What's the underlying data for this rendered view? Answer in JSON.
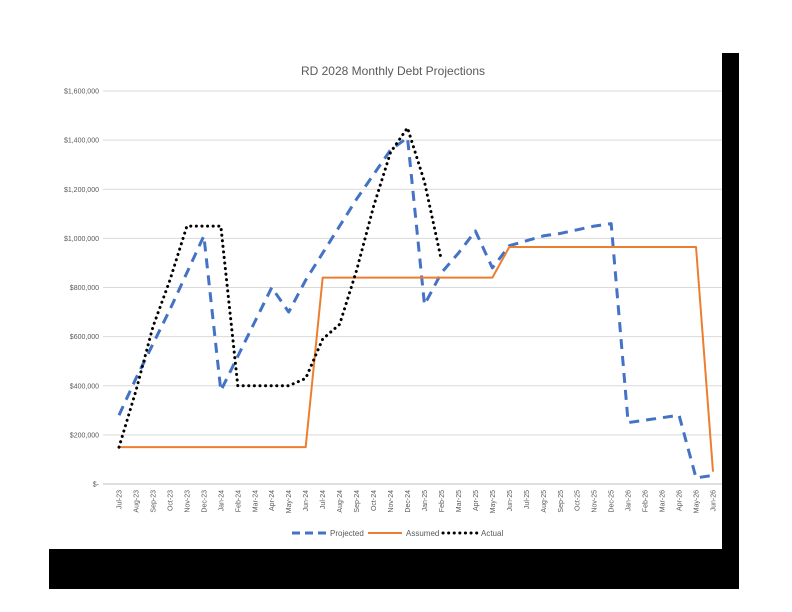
{
  "chart_data": {
    "type": "line",
    "title": "RD 2028 Monthly Debt Projections",
    "categories": [
      "Jul-23",
      "Aug-23",
      "Sep-23",
      "Oct-23",
      "Nov-23",
      "Dec-23",
      "Jan-24",
      "Feb-24",
      "Mar-24",
      "Apr-24",
      "May-24",
      "Jun-24",
      "Jul-24",
      "Aug-24",
      "Sep-24",
      "Oct-24",
      "Nov-24",
      "Dec-24",
      "Jan-25",
      "Feb-25",
      "Mar-25",
      "Apr-25",
      "May-25",
      "Jun-25",
      "Jul-25",
      "Aug-25",
      "Sep-25",
      "Oct-25",
      "Nov-25",
      "Dec-25",
      "Jan-26",
      "Feb-26",
      "Mar-26",
      "Apr-26",
      "May-26",
      "Jun-26"
    ],
    "y_ticks": [
      "$-",
      "$200,000",
      "$400,000",
      "$600,000",
      "$800,000",
      "$1,000,000",
      "$1,200,000",
      "$1,400,000",
      "$1,600,000"
    ],
    "ylim": [
      0,
      1600000
    ],
    "grid": true,
    "legend_position": "bottom",
    "series": [
      {
        "name": "Projected",
        "color": "#4472c4",
        "style": "dashed",
        "values": [
          280000,
          430000,
          570000,
          710000,
          860000,
          1010000,
          380000,
          520000,
          660000,
          800000,
          700000,
          830000,
          940000,
          1050000,
          1160000,
          1260000,
          1360000,
          1410000,
          730000,
          860000,
          940000,
          1030000,
          880000,
          970000,
          990000,
          1010000,
          1020000,
          1035000,
          1050000,
          1060000,
          250000,
          260000,
          270000,
          280000,
          25000,
          35000
        ]
      },
      {
        "name": "Assumed",
        "color": "#ed7d31",
        "style": "solid",
        "values": [
          150000,
          150000,
          150000,
          150000,
          150000,
          150000,
          150000,
          150000,
          150000,
          150000,
          150000,
          150000,
          840000,
          840000,
          840000,
          840000,
          840000,
          840000,
          840000,
          840000,
          840000,
          840000,
          840000,
          965000,
          965000,
          965000,
          965000,
          965000,
          965000,
          965000,
          965000,
          965000,
          965000,
          965000,
          965000,
          50000
        ]
      },
      {
        "name": "Actual",
        "color": "#000000",
        "style": "dotted",
        "values": [
          150000,
          380000,
          640000,
          830000,
          1050000,
          1050000,
          1050000,
          400000,
          400000,
          400000,
          400000,
          430000,
          590000,
          650000,
          870000,
          1130000,
          1350000,
          1450000,
          1230000,
          910000,
          null,
          null,
          null,
          null,
          null,
          null,
          null,
          null,
          null,
          null,
          null,
          null,
          null,
          null,
          null,
          null
        ]
      }
    ]
  }
}
